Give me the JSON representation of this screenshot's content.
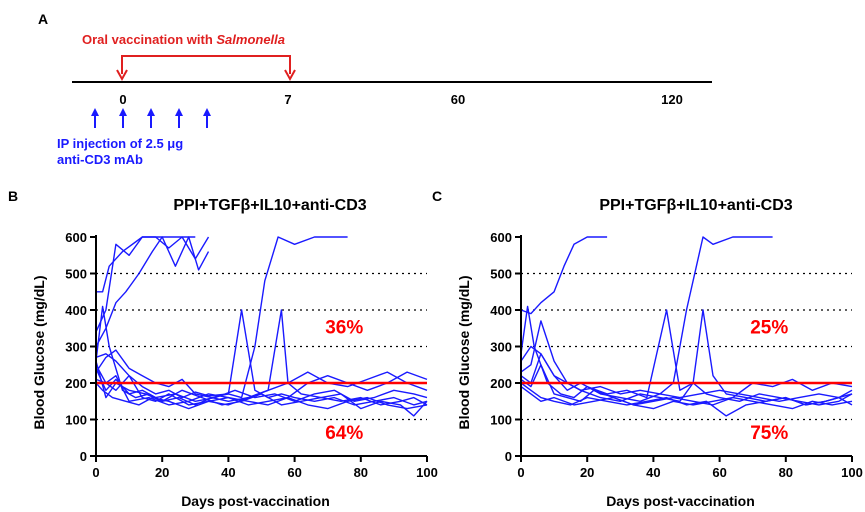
{
  "timeline": {
    "panel_label": "A",
    "oral_prefix": "Oral vaccination with ",
    "oral_italic": "Salmonella",
    "oral_color": "#e02020",
    "injection_color": "#1a1aff",
    "ticks": [
      "0",
      "7",
      "60",
      "120"
    ],
    "injection_line1": "IP injection of 2.5 μg",
    "injection_line2": "anti-CD3 mAb"
  },
  "chart_data": [
    {
      "type": "line",
      "panel_label": "B",
      "title": "PPI+TGFβ+IL10+anti-CD3",
      "xlabel": "Days post-vaccination",
      "ylabel": "Blood Glucose (mg/dL)",
      "xlim": [
        0,
        100
      ],
      "ylim": [
        0,
        600
      ],
      "xticks": [
        0,
        20,
        40,
        60,
        80,
        100
      ],
      "yticks": [
        0,
        100,
        200,
        300,
        400,
        500,
        600
      ],
      "dotted_grid_y": [
        100,
        300,
        400,
        500
      ],
      "threshold": 200,
      "threshold_color": "#ff0000",
      "line_color": "#1a1aff",
      "annotation_above": "36%",
      "annotation_below": "64%",
      "series": [
        {
          "x": [
            0,
            2,
            4,
            8,
            14,
            20,
            26,
            30
          ],
          "y": [
            450,
            450,
            520,
            560,
            600,
            600,
            600,
            600
          ]
        },
        {
          "x": [
            0,
            3,
            6,
            10,
            14,
            18,
            22,
            26,
            30,
            34
          ],
          "y": [
            340,
            400,
            580,
            550,
            600,
            600,
            570,
            600,
            540,
            600
          ]
        },
        {
          "x": [
            0,
            3,
            6,
            9,
            13,
            17,
            20,
            24,
            28,
            31,
            34
          ],
          "y": [
            300,
            350,
            420,
            450,
            500,
            560,
            600,
            520,
            600,
            510,
            560
          ]
        },
        {
          "x": [
            0,
            3,
            6,
            10,
            14,
            18,
            22,
            26,
            30,
            34,
            40,
            44,
            48,
            51,
            55,
            60,
            66,
            72,
            76
          ],
          "y": [
            270,
            280,
            260,
            220,
            190,
            170,
            180,
            160,
            175,
            165,
            170,
            160,
            300,
            480,
            600,
            580,
            600,
            600,
            600
          ]
        },
        {
          "x": [
            0,
            2,
            4,
            8,
            12,
            16,
            20,
            25,
            30,
            35,
            40,
            44,
            48,
            52,
            56,
            60,
            66,
            72,
            78,
            84,
            90,
            96,
            100
          ],
          "y": [
            260,
            410,
            300,
            180,
            160,
            170,
            150,
            160,
            140,
            160,
            170,
            400,
            180,
            160,
            170,
            160,
            150,
            160,
            140,
            150,
            160,
            140,
            150
          ]
        },
        {
          "x": [
            0,
            3,
            6,
            10,
            14,
            18,
            22,
            26,
            30,
            35,
            40,
            46,
            52,
            56,
            58,
            62,
            68,
            74,
            80,
            86,
            92,
            96,
            100
          ],
          "y": [
            230,
            270,
            290,
            240,
            220,
            200,
            190,
            210,
            170,
            160,
            150,
            160,
            180,
            400,
            200,
            170,
            160,
            150,
            160,
            140,
            150,
            160,
            140
          ]
        },
        {
          "x": [
            0,
            3,
            6,
            10,
            14,
            18,
            24,
            30,
            36,
            42,
            48,
            54,
            60,
            66,
            72,
            78,
            84,
            90,
            96,
            100
          ],
          "y": [
            240,
            180,
            210,
            170,
            180,
            160,
            170,
            150,
            160,
            180,
            160,
            170,
            150,
            170,
            180,
            150,
            160,
            180,
            170,
            160
          ]
        },
        {
          "x": [
            0,
            3,
            6,
            10,
            14,
            18,
            22,
            28,
            34,
            40,
            46,
            52,
            58,
            64,
            70,
            76,
            82,
            88,
            94,
            100
          ],
          "y": [
            210,
            200,
            180,
            220,
            160,
            150,
            170,
            140,
            150,
            160,
            150,
            140,
            160,
            200,
            220,
            200,
            180,
            200,
            230,
            210
          ]
        },
        {
          "x": [
            0,
            2,
            5,
            9,
            13,
            17,
            22,
            28,
            34,
            40,
            46,
            52,
            58,
            64,
            70,
            76,
            82,
            88,
            94,
            100
          ],
          "y": [
            200,
            180,
            160,
            150,
            140,
            160,
            150,
            130,
            150,
            140,
            160,
            180,
            200,
            230,
            200,
            190,
            210,
            230,
            200,
            180
          ]
        },
        {
          "x": [
            0,
            3,
            6,
            10,
            15,
            20,
            26,
            32,
            38,
            44,
            50,
            56,
            62,
            68,
            74,
            80,
            86,
            92,
            96,
            100
          ],
          "y": [
            260,
            160,
            200,
            180,
            170,
            150,
            180,
            160,
            140,
            150,
            170,
            140,
            150,
            160,
            170,
            130,
            150,
            140,
            110,
            150
          ]
        },
        {
          "x": [
            0,
            3,
            6,
            10,
            16,
            22,
            28,
            34,
            40,
            46,
            52,
            58,
            64,
            70,
            76,
            82,
            88,
            94,
            100
          ],
          "y": [
            250,
            200,
            220,
            150,
            160,
            140,
            150,
            170,
            160,
            140,
            150,
            160,
            140,
            130,
            150,
            160,
            140,
            130,
            140
          ]
        }
      ]
    },
    {
      "type": "line",
      "panel_label": "C",
      "title": "PPI+TGFβ+IL10+anti-CD3",
      "xlabel": "Days post-vaccination",
      "ylabel": "Blood Glucose (mg/dL)",
      "xlim": [
        0,
        100
      ],
      "ylim": [
        0,
        600
      ],
      "xticks": [
        0,
        20,
        40,
        60,
        80,
        100
      ],
      "yticks": [
        0,
        100,
        200,
        300,
        400,
        500,
        600
      ],
      "dotted_grid_y": [
        100,
        300,
        400,
        500
      ],
      "threshold": 200,
      "threshold_color": "#ff0000",
      "line_color": "#1a1aff",
      "annotation_above": "25%",
      "annotation_below": "75%",
      "series": [
        {
          "x": [
            0,
            3,
            6,
            10,
            13,
            16,
            20,
            26
          ],
          "y": [
            400,
            390,
            420,
            450,
            520,
            580,
            600,
            600
          ]
        },
        {
          "x": [
            0,
            3,
            6,
            10,
            14,
            18,
            24,
            30,
            36,
            42,
            46,
            50,
            53,
            55,
            58,
            64,
            70,
            76
          ],
          "y": [
            260,
            300,
            280,
            220,
            200,
            180,
            190,
            170,
            180,
            170,
            200,
            400,
            520,
            600,
            580,
            600,
            600,
            600
          ]
        },
        {
          "x": [
            0,
            2,
            4,
            8,
            12,
            16,
            20,
            26,
            32,
            38,
            44,
            48,
            52,
            56,
            60,
            66,
            72,
            78,
            84,
            90,
            96,
            100
          ],
          "y": [
            280,
            410,
            300,
            200,
            170,
            160,
            190,
            170,
            180,
            160,
            400,
            180,
            200,
            170,
            160,
            150,
            170,
            160,
            150,
            140,
            150,
            170
          ]
        },
        {
          "x": [
            0,
            3,
            6,
            10,
            14,
            18,
            24,
            30,
            36,
            42,
            48,
            52,
            55,
            58,
            62,
            68,
            74,
            80,
            86,
            92,
            96,
            100
          ],
          "y": [
            230,
            250,
            370,
            260,
            200,
            180,
            160,
            150,
            170,
            160,
            150,
            200,
            400,
            220,
            170,
            160,
            150,
            160,
            140,
            150,
            160,
            140
          ]
        },
        {
          "x": [
            0,
            3,
            6,
            10,
            14,
            18,
            24,
            30,
            36,
            42,
            48,
            54,
            60,
            66,
            72,
            78,
            84,
            90,
            96,
            100
          ],
          "y": [
            220,
            200,
            280,
            220,
            180,
            200,
            170,
            160,
            150,
            170,
            160,
            170,
            180,
            170,
            160,
            150,
            160,
            170,
            160,
            170
          ]
        },
        {
          "x": [
            0,
            3,
            6,
            10,
            14,
            18,
            22,
            28,
            34,
            40,
            46,
            52,
            58,
            64,
            70,
            76,
            82,
            88,
            94,
            100
          ],
          "y": [
            210,
            190,
            250,
            170,
            160,
            150,
            180,
            160,
            140,
            150,
            160,
            150,
            140,
            160,
            200,
            190,
            210,
            180,
            200,
            190
          ]
        },
        {
          "x": [
            0,
            3,
            6,
            10,
            15,
            20,
            26,
            32,
            38,
            44,
            50,
            56,
            62,
            68,
            74,
            80,
            86,
            92,
            96,
            100
          ],
          "y": [
            200,
            180,
            160,
            150,
            140,
            160,
            150,
            140,
            150,
            160,
            140,
            150,
            110,
            140,
            150,
            160,
            140,
            150,
            160,
            180
          ]
        },
        {
          "x": [
            0,
            3,
            6,
            10,
            16,
            22,
            28,
            34,
            40,
            46,
            52,
            58,
            64,
            70,
            76,
            82,
            88,
            94,
            100
          ],
          "y": [
            190,
            170,
            150,
            160,
            140,
            150,
            160,
            140,
            130,
            150,
            140,
            150,
            160,
            150,
            140,
            130,
            150,
            140,
            150
          ]
        }
      ]
    }
  ]
}
